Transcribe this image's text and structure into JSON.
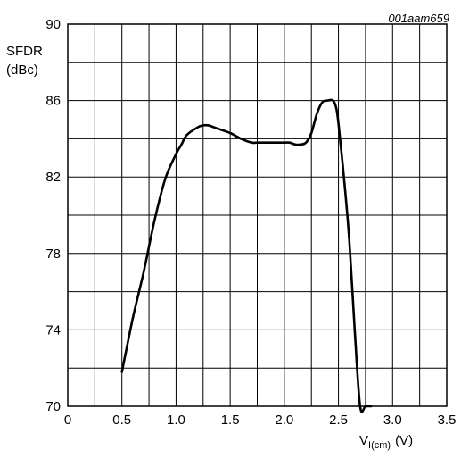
{
  "chart_data": {
    "type": "line",
    "figure_code": "001aam659",
    "ylabel_line1": "SFDR",
    "ylabel_line2": "(dBc)",
    "xlabel_main": "V",
    "xlabel_sub": "I(cm)",
    "xlabel_unit": "(V)",
    "xlim": [
      0,
      3.5
    ],
    "ylim": [
      70,
      90
    ],
    "xticks": [
      0,
      0.5,
      1.0,
      1.5,
      2.0,
      2.5,
      3.0,
      3.5
    ],
    "xtick_labels": [
      "0",
      "0.5",
      "1.0",
      "1.5",
      "2.0",
      "2.5",
      "3.0",
      "3.5"
    ],
    "yticks": [
      70,
      74,
      78,
      82,
      86,
      90
    ],
    "ytick_labels": [
      "70",
      "74",
      "78",
      "82",
      "86",
      "90"
    ],
    "grid": true,
    "x_minor_step": 0.25,
    "y_minor_step": 2,
    "line_color": "#000000",
    "series": [
      {
        "x": [
          0.5,
          0.6,
          0.7,
          0.8,
          0.9,
          1.0,
          1.05,
          1.1,
          1.2,
          1.25,
          1.3,
          1.35,
          1.4,
          1.5,
          1.6,
          1.7,
          1.75,
          1.8,
          1.9,
          2.0,
          2.05,
          2.1,
          2.15,
          2.2,
          2.25,
          2.3,
          2.35,
          2.4,
          2.45,
          2.48,
          2.5,
          2.55,
          2.6,
          2.65,
          2.7,
          2.75,
          2.8
        ],
        "y": [
          71.8,
          74.6,
          77.0,
          79.7,
          81.9,
          83.2,
          83.7,
          84.2,
          84.6,
          84.7,
          84.7,
          84.6,
          84.5,
          84.3,
          84.0,
          83.8,
          83.8,
          83.8,
          83.8,
          83.8,
          83.8,
          83.7,
          83.7,
          83.8,
          84.3,
          85.3,
          85.9,
          86.0,
          86.0,
          85.6,
          84.8,
          82.0,
          78.7,
          74.0,
          70.0,
          70.0,
          70.0
        ]
      }
    ]
  }
}
